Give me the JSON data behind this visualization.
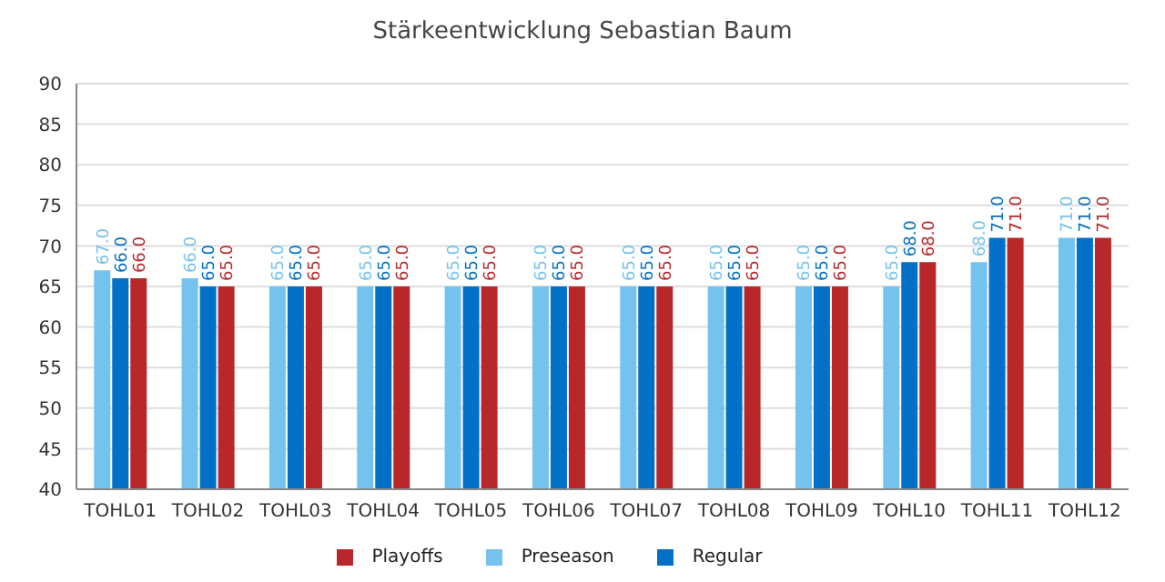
{
  "chart_data": {
    "type": "bar",
    "title": "Stärkeentwicklung Sebastian Baum",
    "categories": [
      "TOHL01",
      "TOHL02",
      "TOHL03",
      "TOHL04",
      "TOHL05",
      "TOHL06",
      "TOHL07",
      "TOHL08",
      "TOHL09",
      "TOHL10",
      "TOHL11",
      "TOHL12"
    ],
    "series": [
      {
        "name": "Preseason",
        "color": "#74c3ef",
        "values": [
          67,
          66,
          65,
          65,
          65,
          65,
          65,
          65,
          65,
          65,
          68,
          71
        ],
        "value_labels": [
          "67.0",
          "66.0",
          "65.0",
          "65.0",
          "65.0",
          "65.0",
          "65.0",
          "65.0",
          "65.0",
          "65.0",
          "68.0",
          "71.0"
        ]
      },
      {
        "name": "Regular",
        "color": "#0270c6",
        "values": [
          66,
          65,
          65,
          65,
          65,
          65,
          65,
          65,
          65,
          68,
          71,
          71
        ],
        "value_labels": [
          "66.0",
          "65.0",
          "65.0",
          "65.0",
          "65.0",
          "65.0",
          "65.0",
          "65.0",
          "65.0",
          "68.0",
          "71.0",
          "71.0"
        ]
      },
      {
        "name": "Playoffs",
        "color": "#b8282a",
        "values": [
          66,
          65,
          65,
          65,
          65,
          65,
          65,
          65,
          65,
          68,
          71,
          71
        ],
        "value_labels": [
          "66.0",
          "65.0",
          "65.0",
          "65.0",
          "65.0",
          "65.0",
          "65.0",
          "65.0",
          "65.0",
          "68.0",
          "71.0",
          "71.0"
        ]
      }
    ],
    "ylim": [
      40,
      90
    ],
    "yticks": [
      40,
      45,
      50,
      55,
      60,
      65,
      70,
      75,
      80,
      85,
      90
    ],
    "grid": "y",
    "legend": "bottom"
  }
}
